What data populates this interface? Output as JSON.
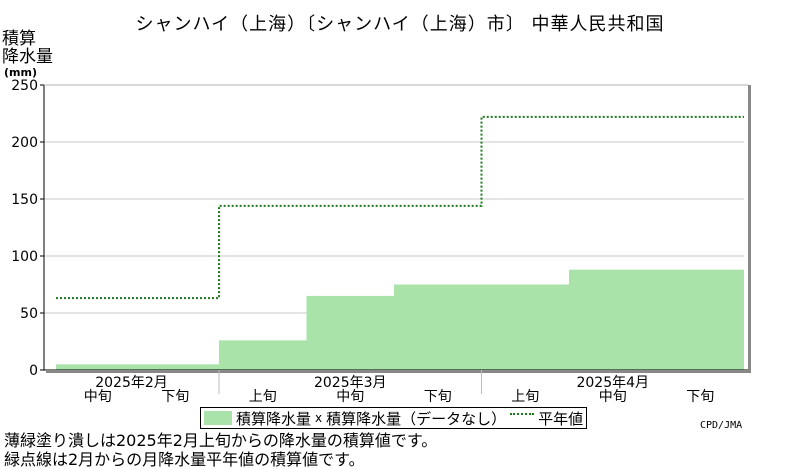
{
  "title": "シャンハイ（上海）〔シャンハイ（上海）市〕 中華人民共和国",
  "ylabel": "積算\n降水量",
  "yunit": "(mm)",
  "legend": {
    "bar_label": "積算降水量",
    "missing_label": "積算降水量（データなし）",
    "missing_mark": "x",
    "normal_label": "平年値"
  },
  "credit": "CPD/JMA",
  "notes": {
    "line1": "薄緑塗り潰しは2025年2月上旬からの降水量の積算値です。",
    "line2": "緑点線は2月からの月降水量平年値の積算値です。"
  },
  "colors": {
    "bar": "#a9e3a9",
    "normal_line": "#1a7a1a",
    "grid": "#c8c8c8"
  },
  "chart_data": {
    "type": "area",
    "categories": [
      "中旬",
      "下旬",
      "上旬",
      "中旬",
      "下旬",
      "上旬",
      "中旬",
      "下旬"
    ],
    "months": [
      {
        "label": "2025年2月",
        "start": 0,
        "end": 2
      },
      {
        "label": "2025年3月",
        "start": 2,
        "end": 5
      },
      {
        "label": "2025年4月",
        "start": 5,
        "end": 8
      }
    ],
    "series": [
      {
        "name": "積算降水量",
        "values": [
          5,
          5,
          26,
          65,
          75,
          75,
          88,
          88
        ]
      },
      {
        "name": "平年値",
        "values": [
          63,
          63,
          144,
          144,
          144,
          222,
          222,
          222
        ]
      }
    ],
    "ylim": [
      0,
      250
    ],
    "yticks": [
      0,
      50,
      100,
      150,
      200,
      250
    ],
    "grid": true
  }
}
